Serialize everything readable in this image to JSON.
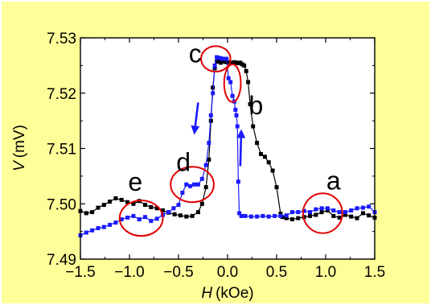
{
  "chart_data": {
    "type": "scatter",
    "xlabel": {
      "symbol": "H",
      "unit": "(kOe)"
    },
    "ylabel": {
      "symbol": "V",
      "unit": "(mV)"
    },
    "xlim": [
      -1.5,
      1.5
    ],
    "ylim": [
      7.49,
      7.53
    ],
    "x_ticks": [
      "−1.5",
      "−1.0",
      "−0.5",
      "0.0",
      "0.5",
      "1.0",
      "1.5"
    ],
    "y_ticks": [
      "7.49",
      "7.50",
      "7.51",
      "7.52",
      "7.53"
    ],
    "grid": false,
    "colors": {
      "background": "#ffff99",
      "black_series": "#000000",
      "blue_series": "#1a1aff",
      "circle": "#e00000",
      "arrow": "#1a1aff"
    },
    "series": [
      {
        "color": "black",
        "x": [
          -1.5,
          -1.44,
          -1.38,
          -1.32,
          -1.26,
          -1.2,
          -1.14,
          -1.08,
          -1.02,
          -0.96,
          -0.9,
          -0.84,
          -0.78,
          -0.72,
          -0.66,
          -0.6,
          -0.54,
          -0.48,
          -0.42,
          -0.36,
          -0.3,
          -0.26,
          -0.22,
          -0.19,
          -0.17,
          -0.15,
          -0.13,
          -0.11,
          -0.09,
          -0.07,
          -0.05,
          -0.03,
          -0.01,
          0.01,
          0.03,
          0.05,
          0.07,
          0.09,
          0.11,
          0.13,
          0.15,
          0.17,
          0.19,
          0.21,
          0.23,
          0.26,
          0.3,
          0.34,
          0.38,
          0.42,
          0.46,
          0.5,
          0.54,
          0.56,
          0.6,
          0.66,
          0.72,
          0.78,
          0.84,
          0.9,
          0.96,
          1.02,
          1.08,
          1.14,
          1.2,
          1.26,
          1.32,
          1.38,
          1.44,
          1.5
        ],
        "y": [
          7.4987,
          7.4983,
          7.4985,
          7.4993,
          7.4998,
          7.5004,
          7.501,
          7.5007,
          7.5003,
          7.5,
          7.5005,
          7.4998,
          7.4994,
          7.4992,
          7.4988,
          7.4984,
          7.4981,
          7.4979,
          7.4977,
          7.4978,
          7.4985,
          7.5,
          7.503,
          7.508,
          7.515,
          7.521,
          7.5245,
          7.5257,
          7.526,
          7.5255,
          7.5258,
          7.5257,
          7.5256,
          7.5256,
          7.5254,
          7.5255,
          7.5256,
          7.5255,
          7.5254,
          7.5255,
          7.5252,
          7.525,
          7.524,
          7.522,
          7.518,
          7.514,
          7.511,
          7.509,
          7.5085,
          7.5075,
          7.506,
          7.503,
          7.4982,
          7.4976,
          7.4974,
          7.4972,
          7.4974,
          7.4976,
          7.4978,
          7.498,
          7.4985,
          7.4988,
          7.4978,
          7.4975,
          7.498,
          7.4977,
          7.4974,
          7.4983,
          7.4979,
          7.4975
        ]
      },
      {
        "color": "blue",
        "x": [
          -1.5,
          -1.44,
          -1.38,
          -1.32,
          -1.26,
          -1.2,
          -1.14,
          -1.08,
          -1.02,
          -0.96,
          -0.9,
          -0.84,
          -0.78,
          -0.72,
          -0.66,
          -0.6,
          -0.55,
          -0.5,
          -0.46,
          -0.42,
          -0.38,
          -0.34,
          -0.3,
          -0.26,
          -0.22,
          -0.19,
          -0.17,
          -0.15,
          -0.13,
          -0.11,
          -0.09,
          -0.07,
          -0.05,
          -0.03,
          -0.01,
          0.01,
          0.03,
          0.05,
          0.07,
          0.08,
          0.09,
          0.1,
          0.11,
          0.12,
          0.14,
          0.18,
          0.24,
          0.3,
          0.36,
          0.42,
          0.48,
          0.54,
          0.6,
          0.66,
          0.72,
          0.78,
          0.84,
          0.9,
          0.96,
          1.02,
          1.08,
          1.14,
          1.2,
          1.26,
          1.32,
          1.38,
          1.44,
          1.5
        ],
        "y": [
          7.4943,
          7.4948,
          7.4952,
          7.4956,
          7.4958,
          7.4962,
          7.4966,
          7.4972,
          7.4975,
          7.4978,
          7.4972,
          7.4976,
          7.4969,
          7.4973,
          7.498,
          7.4985,
          7.4992,
          7.4998,
          7.502,
          7.5035,
          7.5032,
          7.5035,
          7.5035,
          7.5045,
          7.507,
          7.511,
          7.516,
          7.52,
          7.525,
          7.5265,
          7.5264,
          7.5263,
          7.5262,
          7.5262,
          7.5262,
          7.5227,
          7.522,
          7.5195,
          7.5185,
          7.517,
          7.516,
          7.514,
          7.504,
          7.4983,
          7.4978,
          7.4978,
          7.4977,
          7.4977,
          7.4978,
          7.4977,
          7.4978,
          7.4978,
          7.4979,
          7.4985,
          7.4985,
          7.4987,
          7.4985,
          7.499,
          7.4992,
          7.4992,
          7.4988,
          7.4985,
          7.4985,
          7.4988,
          7.4992,
          7.4993,
          7.4995,
          7.4985
        ]
      }
    ],
    "annotations": [
      {
        "text": "a",
        "x": 1.08,
        "y": 7.5026
      },
      {
        "text": "b",
        "x": 0.29,
        "y": 7.5162
      },
      {
        "text": "c",
        "x": -0.33,
        "y": 7.5256
      },
      {
        "text": "d",
        "x": -0.45,
        "y": 7.5059
      },
      {
        "text": "e",
        "x": -0.94,
        "y": 7.5024
      }
    ],
    "circles": [
      {
        "x": 0.97,
        "y": 7.4983,
        "rx": 0.2,
        "ry": 0.0036
      },
      {
        "x": 0.05,
        "y": 7.5218,
        "rx": 0.085,
        "ry": 0.0034
      },
      {
        "x": -0.12,
        "y": 7.5262,
        "rx": 0.15,
        "ry": 0.0023
      },
      {
        "x": -0.36,
        "y": 7.5035,
        "rx": 0.22,
        "ry": 0.0032
      },
      {
        "x": -0.88,
        "y": 7.4974,
        "rx": 0.22,
        "ry": 0.0032
      }
    ],
    "arrows": [
      {
        "from": [
          -0.3,
          7.5183
        ],
        "to": [
          -0.34,
          7.5125
        ]
      },
      {
        "from": [
          0.13,
          7.5068
        ],
        "to": [
          0.14,
          7.5135
        ]
      }
    ]
  }
}
